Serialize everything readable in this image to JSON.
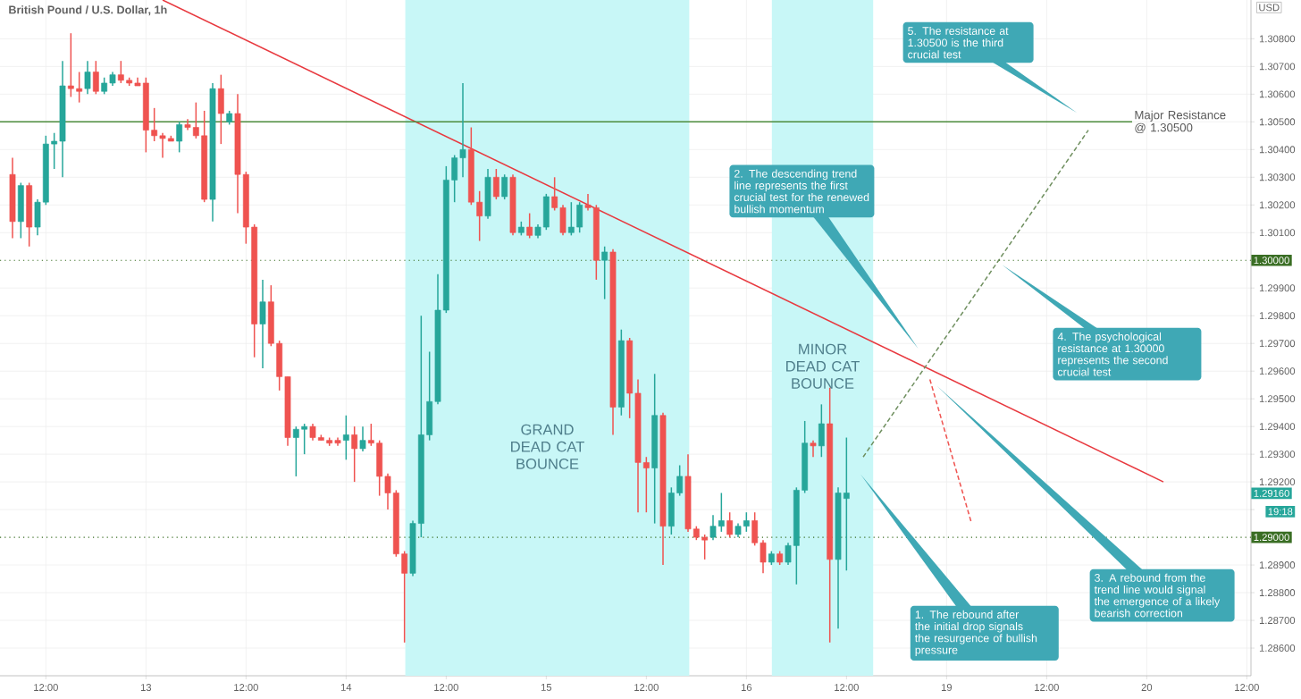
{
  "chart_data": {
    "type": "candlestick",
    "title": "British Pound / U.S. Dollar, 1h",
    "ylabel": "USD",
    "categories": [
      null,
      null,
      null,
      null,
      null,
      "12:00",
      null,
      null,
      null,
      null,
      null,
      null,
      null,
      null,
      null,
      null,
      null,
      "13",
      null,
      null,
      null,
      null,
      null,
      null,
      null,
      null,
      null,
      null,
      null,
      "12:00",
      null,
      null,
      null,
      null,
      null,
      null,
      null,
      null,
      null,
      null,
      null,
      "14",
      null,
      null,
      null,
      null,
      null,
      null,
      null,
      null,
      null,
      null,
      null,
      "12:00",
      null,
      null,
      null,
      null,
      null,
      null,
      null,
      null,
      null,
      null,
      null,
      "15",
      null,
      null,
      null,
      null,
      null,
      null,
      null,
      null,
      null,
      null,
      null,
      "12:00",
      null,
      null,
      null,
      null,
      null,
      null,
      null,
      null,
      null,
      null,
      null,
      "16",
      null,
      null,
      null,
      null,
      null,
      null,
      null,
      null,
      null,
      null,
      null,
      "12:00",
      null,
      null,
      null,
      null,
      null,
      null,
      null,
      null,
      null,
      null,
      null,
      "19",
      null,
      null,
      null,
      null,
      null,
      null,
      null,
      null,
      null,
      null,
      null,
      "12:00",
      null,
      null,
      null,
      null,
      null,
      null,
      null,
      null,
      null,
      null,
      null,
      "20",
      null,
      null,
      null,
      null,
      null,
      null,
      null,
      null,
      null,
      null,
      null,
      "12:00"
    ],
    "ylim": [
      1.285,
      1.3094
    ],
    "grid": true,
    "yticks": [
      {
        "value": 1.286,
        "label": "1.28600"
      },
      {
        "value": 1.287,
        "label": "1.28700"
      },
      {
        "value": 1.288,
        "label": "1.28800"
      },
      {
        "value": 1.289,
        "label": "1.28900"
      },
      {
        "value": 1.291,
        "label": null
      },
      {
        "value": 1.292,
        "label": "1.29200"
      },
      {
        "value": 1.293,
        "label": "1.29300"
      },
      {
        "value": 1.294,
        "label": "1.29400"
      },
      {
        "value": 1.295,
        "label": "1.29500"
      },
      {
        "value": 1.296,
        "label": "1.29600"
      },
      {
        "value": 1.297,
        "label": "1.29700"
      },
      {
        "value": 1.298,
        "label": "1.29800"
      },
      {
        "value": 1.299,
        "label": "1.29900"
      },
      {
        "value": 1.301,
        "label": "1.30100"
      },
      {
        "value": 1.302,
        "label": "1.30200"
      },
      {
        "value": 1.303,
        "label": "1.30300"
      },
      {
        "value": 1.304,
        "label": "1.30400"
      },
      {
        "value": 1.305,
        "label": "1.30500"
      },
      {
        "value": 1.306,
        "label": "1.30600"
      },
      {
        "value": 1.307,
        "label": "1.30700"
      },
      {
        "value": 1.308,
        "label": "1.30800"
      }
    ],
    "ref_lines": [
      {
        "axis": "y",
        "value": 1.305,
        "label": "Major Resistance @ 1.30500",
        "color": "#4c8c3c",
        "line_style": "solid"
      },
      {
        "axis": "y",
        "value": 1.3,
        "label": "1.30000",
        "color": "#3a6e24",
        "line_style": "dotted"
      },
      {
        "axis": "y",
        "value": 1.29,
        "label": "1.29000",
        "color": "#3a6e24",
        "line_style": "dotted"
      }
    ],
    "series": [
      {
        "ohlc": [
          null,
          [
            1.3031,
            1.3037,
            1.3008,
            1.3014
          ],
          [
            1.3014,
            1.3028,
            1.3008,
            1.3027
          ],
          [
            1.3027,
            1.3028,
            1.3005,
            1.3012
          ],
          [
            1.3012,
            1.3022,
            1.3009,
            1.3021
          ],
          [
            1.3021,
            1.3045,
            1.302,
            1.3042
          ],
          [
            1.3042,
            1.3046,
            1.3033,
            1.3043
          ],
          [
            1.3043,
            1.3072,
            1.303,
            1.3063
          ],
          [
            1.3063,
            1.3082,
            1.3059,
            1.3062
          ],
          [
            1.3062,
            1.3068,
            1.3057,
            1.3061
          ],
          [
            1.3062,
            1.3072,
            1.306,
            1.3068
          ],
          [
            1.3068,
            1.3072,
            1.306,
            1.3061
          ],
          [
            1.3061,
            1.3066,
            1.306,
            1.3064
          ],
          [
            1.3064,
            1.3068,
            1.3063,
            1.3067
          ],
          [
            1.3067,
            1.3072,
            1.3064,
            1.3065
          ],
          [
            1.3065,
            1.3066,
            1.3063,
            1.3064
          ],
          [
            1.3064,
            1.3066,
            1.3063,
            1.3063
          ],
          [
            1.3064,
            1.3066,
            1.3039,
            1.3047
          ],
          [
            1.3047,
            1.3055,
            1.3043,
            1.3045
          ],
          [
            1.3045,
            1.3046,
            1.3037,
            1.3044
          ],
          [
            1.3044,
            1.3045,
            1.3043,
            1.3043
          ],
          [
            1.3043,
            1.305,
            1.3039,
            1.3049
          ],
          [
            1.3049,
            1.3051,
            1.3047,
            1.3048
          ],
          [
            1.3048,
            1.3057,
            1.3044,
            1.3045
          ],
          [
            1.3045,
            1.3054,
            1.3021,
            1.3022
          ],
          [
            1.3022,
            1.3064,
            1.3014,
            1.3062
          ],
          [
            1.3062,
            1.3067,
            1.3042,
            1.3053
          ],
          [
            1.305,
            1.3054,
            1.3049,
            1.3053
          ],
          [
            1.3053,
            1.306,
            1.3017,
            1.3031
          ],
          [
            1.3031,
            1.3032,
            1.3006,
            1.3012
          ],
          [
            1.3012,
            1.3013,
            1.2965,
            1.2977
          ],
          [
            1.2977,
            1.2993,
            1.2961,
            1.2985
          ],
          [
            1.2985,
            1.2991,
            1.2969,
            1.297
          ],
          [
            1.297,
            1.2971,
            1.2953,
            1.2958
          ],
          [
            1.2958,
            1.2958,
            1.2933,
            1.2936
          ],
          [
            1.2936,
            1.294,
            1.2922,
            1.2939
          ],
          [
            1.2939,
            1.2941,
            1.293,
            1.294
          ],
          [
            1.294,
            1.2941,
            1.2935,
            1.2936
          ],
          [
            1.2936,
            1.2937,
            1.2935,
            1.2935
          ],
          [
            1.2935,
            1.2936,
            1.2933,
            1.2934
          ],
          [
            1.2935,
            1.2936,
            1.2933,
            1.2934
          ],
          [
            1.2935,
            1.2944,
            1.2928,
            1.2937
          ],
          [
            1.2937,
            1.294,
            1.292,
            1.2932
          ],
          [
            1.2932,
            1.294,
            1.2931,
            1.2935
          ],
          [
            1.2935,
            1.2941,
            1.2933,
            1.2934
          ],
          [
            1.2934,
            1.2935,
            1.2915,
            1.2922
          ],
          [
            1.2922,
            1.2923,
            1.291,
            1.2916
          ],
          [
            1.2916,
            1.2917,
            1.2893,
            1.2894
          ],
          [
            1.2894,
            1.2895,
            1.2862,
            1.2887
          ],
          [
            1.2887,
            1.2906,
            1.2886,
            1.2905
          ],
          [
            1.2905,
            1.298,
            1.29,
            1.2937
          ],
          [
            1.2937,
            1.2967,
            1.2935,
            1.2949
          ],
          [
            1.2949,
            1.2995,
            1.2948,
            1.2982
          ],
          [
            1.2982,
            1.3034,
            1.2981,
            1.3029
          ],
          [
            1.3029,
            1.3038,
            1.3021,
            1.3037
          ],
          [
            1.3037,
            1.3064,
            1.303,
            1.304
          ],
          [
            1.304,
            1.3048,
            1.302,
            1.3021
          ],
          [
            1.3021,
            1.3025,
            1.3007,
            1.3016
          ],
          [
            1.3016,
            1.3033,
            1.3015,
            1.303
          ],
          [
            1.303,
            1.3033,
            1.3022,
            1.3023
          ],
          [
            1.3023,
            1.3031,
            1.3022,
            1.303
          ],
          [
            1.303,
            1.3031,
            1.3009,
            1.301
          ],
          [
            1.301,
            1.3014,
            1.3009,
            1.3012
          ],
          [
            1.3012,
            1.3017,
            1.3008,
            1.3009
          ],
          [
            1.3009,
            1.3013,
            1.3008,
            1.3012
          ],
          [
            1.3012,
            1.3024,
            1.3011,
            1.3023
          ],
          [
            1.3023,
            1.303,
            1.3018,
            1.3019
          ],
          [
            1.3019,
            1.302,
            1.3009,
            1.301
          ],
          [
            1.301,
            1.3021,
            1.3009,
            1.3012
          ],
          [
            1.3012,
            1.3021,
            1.301,
            1.302
          ],
          [
            1.302,
            1.3024,
            1.3018,
            1.3019
          ],
          [
            1.3019,
            1.302,
            1.2993,
            1.3
          ],
          [
            1.3,
            1.3005,
            1.2986,
            1.3003
          ],
          [
            1.3003,
            1.3004,
            1.2937,
            1.2947
          ],
          [
            1.2947,
            1.2975,
            1.2944,
            1.2971
          ],
          [
            1.2971,
            1.2972,
            1.2943,
            1.2952
          ],
          [
            1.2952,
            1.2957,
            1.2909,
            1.2927
          ],
          [
            1.2927,
            1.2929,
            1.2909,
            1.2925
          ],
          [
            1.2925,
            1.2959,
            1.2905,
            1.2944
          ],
          [
            1.2944,
            1.2945,
            1.289,
            1.2904
          ],
          [
            1.2904,
            1.2918,
            1.2901,
            1.2916
          ],
          [
            1.2916,
            1.2926,
            1.2915,
            1.2922
          ],
          [
            1.2922,
            1.293,
            1.2902,
            1.2903
          ],
          [
            1.2903,
            1.2904,
            1.2899,
            1.29
          ],
          [
            1.29,
            1.2901,
            1.2892,
            1.2899
          ],
          [
            1.29,
            1.2908,
            1.2899,
            1.2904
          ],
          [
            1.2904,
            1.2916,
            1.2902,
            1.2906
          ],
          [
            1.2906,
            1.2909,
            1.29,
            1.2901
          ],
          [
            1.2901,
            1.2905,
            1.29,
            1.2904
          ],
          [
            1.2904,
            1.2909,
            1.2902,
            1.2906
          ],
          [
            1.2906,
            1.2909,
            1.2897,
            1.2898
          ],
          [
            1.2898,
            1.2899,
            1.2887,
            1.2891
          ],
          [
            1.2891,
            1.2895,
            1.289,
            1.2894
          ],
          [
            1.2894,
            1.2895,
            1.289,
            1.2891
          ],
          [
            1.2891,
            1.2898,
            1.289,
            1.2897
          ],
          [
            1.2897,
            1.2918,
            1.2883,
            1.2917
          ],
          [
            1.2917,
            1.2942,
            1.2916,
            1.2934
          ],
          [
            1.2934,
            1.2935,
            1.2929,
            1.2933
          ],
          [
            1.2933,
            1.2948,
            1.2929,
            1.2941
          ],
          [
            1.2941,
            1.2954,
            1.2862,
            1.2892
          ],
          [
            1.2892,
            1.2918,
            1.2867,
            1.2916
          ],
          [
            1.2914,
            1.2936,
            1.2888,
            1.2916
          ],
          null,
          null,
          null,
          null,
          null,
          null,
          null,
          null,
          null,
          null,
          null,
          null,
          null,
          null,
          null,
          null,
          null,
          null,
          null,
          null,
          null,
          null,
          null,
          null,
          null,
          null,
          null,
          null,
          null,
          null,
          null,
          null,
          null,
          null,
          null,
          null,
          null,
          null,
          null,
          null,
          null,
          null,
          null,
          null,
          null,
          null,
          null,
          null
        ],
        "colors": [
          null,
          "#ef5350",
          "#26a69a",
          "#ef5350",
          "#26a69a",
          "#26a69a",
          "#26a69a",
          "#26a69a",
          "#ef5350",
          "#ef5350",
          "#26a69a",
          "#ef5350",
          "#26a69a",
          "#26a69a",
          "#ef5350",
          "#ef5350",
          "#ef5350",
          "#ef5350",
          "#ef5350",
          "#ef5350",
          "#ef5350",
          "#26a69a",
          "#ef5350",
          "#ef5350",
          "#ef5350",
          "#26a69a",
          "#ef5350",
          "#26a69a",
          "#ef5350",
          "#ef5350",
          "#ef5350",
          "#26a69a",
          "#ef5350",
          "#ef5350",
          "#ef5350",
          "#26a69a",
          "#26a69a",
          "#ef5350",
          "#ef5350",
          "#ef5350",
          "#ef5350",
          "#26a69a",
          "#ef5350",
          "#26a69a",
          "#ef5350",
          "#ef5350",
          "#ef5350",
          "#ef5350",
          "#ef5350",
          "#26a69a",
          "#26a69a",
          "#26a69a",
          "#26a69a",
          "#26a69a",
          "#26a69a",
          "#26a69a",
          "#ef5350",
          "#ef5350",
          "#26a69a",
          "#ef5350",
          "#26a69a",
          "#ef5350",
          "#26a69a",
          "#ef5350",
          "#26a69a",
          "#26a69a",
          "#ef5350",
          "#ef5350",
          "#26a69a",
          "#26a69a",
          "#ef5350",
          "#ef5350",
          "#26a69a",
          "#ef5350",
          "#26a69a",
          "#ef5350",
          "#ef5350",
          "#ef5350",
          "#26a69a",
          "#ef5350",
          "#26a69a",
          "#26a69a",
          "#ef5350",
          "#ef5350",
          "#ef5350",
          "#26a69a",
          "#26a69a",
          "#ef5350",
          "#26a69a",
          "#26a69a",
          "#ef5350",
          "#ef5350",
          "#26a69a",
          "#ef5350",
          "#26a69a",
          "#26a69a",
          "#26a69a",
          "#ef5350",
          "#26a69a",
          "#ef5350",
          "#26a69a",
          "#26a69a",
          null,
          null,
          null,
          null,
          null,
          null,
          null,
          null,
          null,
          null,
          null,
          null,
          null,
          null,
          null,
          null,
          null,
          null,
          null,
          null,
          null,
          null,
          null,
          null,
          null,
          null,
          null,
          null,
          null,
          null,
          null,
          null,
          null,
          null,
          null,
          null,
          null,
          null,
          null,
          null,
          null,
          null,
          null,
          null,
          null,
          null,
          null,
          null
        ]
      },
      {
        "type": "line",
        "color": "#e8393f",
        "line_style": "solid",
        "values": [
          null,
          null,
          null,
          null,
          null,
          null,
          null,
          null,
          null,
          null,
          null,
          null,
          null,
          null,
          null,
          null,
          null,
          null,
          null,
          1.3094,
          null,
          null,
          null,
          null,
          null,
          null,
          null,
          null,
          null,
          null,
          null,
          null,
          null,
          null,
          null,
          null,
          null,
          null,
          null,
          null,
          null,
          null,
          null,
          null,
          null,
          null,
          null,
          null,
          null,
          null,
          null,
          null,
          null,
          null,
          null,
          null,
          null,
          null,
          null,
          null,
          null,
          null,
          null,
          null,
          null,
          null,
          null,
          null,
          null,
          null,
          null,
          null,
          null,
          null,
          null,
          null,
          null,
          null,
          null,
          null,
          null,
          null,
          null,
          null,
          null,
          null,
          null,
          null,
          null,
          null,
          null,
          null,
          null,
          null,
          null,
          null,
          null,
          null,
          null,
          null,
          null,
          null,
          null,
          null,
          null,
          null,
          null,
          null,
          null,
          null,
          null,
          null,
          null,
          null,
          null,
          null,
          null,
          null,
          null,
          null,
          null,
          null,
          null,
          null,
          null,
          null,
          null,
          null,
          null,
          null,
          null,
          null,
          null,
          null,
          null,
          null,
          null,
          null,
          null,
          1.292,
          null,
          null,
          null,
          null,
          null,
          null,
          null,
          null,
          null,
          null
        ]
      },
      {
        "type": "line",
        "color": "#6f8f5f",
        "line_style": "dashed",
        "values": [
          null,
          null,
          null,
          null,
          null,
          null,
          null,
          null,
          null,
          null,
          null,
          null,
          null,
          null,
          null,
          null,
          null,
          null,
          null,
          null,
          null,
          null,
          null,
          null,
          null,
          null,
          null,
          null,
          null,
          null,
          null,
          null,
          null,
          null,
          null,
          null,
          null,
          null,
          null,
          null,
          null,
          null,
          null,
          null,
          null,
          null,
          null,
          null,
          null,
          null,
          null,
          null,
          null,
          null,
          null,
          null,
          null,
          null,
          null,
          null,
          null,
          null,
          null,
          null,
          null,
          null,
          null,
          null,
          null,
          null,
          null,
          null,
          null,
          null,
          null,
          null,
          null,
          null,
          null,
          null,
          null,
          null,
          null,
          null,
          null,
          null,
          null,
          null,
          null,
          null,
          null,
          null,
          null,
          null,
          null,
          null,
          null,
          null,
          null,
          null,
          null,
          null,
          null,
          1.2929,
          null,
          null,
          null,
          null,
          null,
          null,
          null,
          null,
          null,
          null,
          null,
          null,
          null,
          null,
          null,
          null,
          null,
          null,
          null,
          null,
          null,
          null,
          null,
          null,
          null,
          null,
          1.3047,
          null,
          null,
          null,
          null,
          null,
          null,
          null,
          null,
          null,
          null,
          null,
          null,
          null,
          null,
          null,
          null,
          null,
          null,
          null
        ]
      },
      {
        "type": "line",
        "color": "#ef5350",
        "line_style": "dashed",
        "values": [
          null,
          null,
          null,
          null,
          null,
          null,
          null,
          null,
          null,
          null,
          null,
          null,
          null,
          null,
          null,
          null,
          null,
          null,
          null,
          null,
          null,
          null,
          null,
          null,
          null,
          null,
          null,
          null,
          null,
          null,
          null,
          null,
          null,
          null,
          null,
          null,
          null,
          null,
          null,
          null,
          null,
          null,
          null,
          null,
          null,
          null,
          null,
          null,
          null,
          null,
          null,
          null,
          null,
          null,
          null,
          null,
          null,
          null,
          null,
          null,
          null,
          null,
          null,
          null,
          null,
          null,
          null,
          null,
          null,
          null,
          null,
          null,
          null,
          null,
          null,
          null,
          null,
          null,
          null,
          null,
          null,
          null,
          null,
          null,
          null,
          null,
          null,
          null,
          null,
          null,
          null,
          null,
          null,
          null,
          null,
          null,
          null,
          null,
          null,
          null,
          null,
          null,
          null,
          null,
          null,
          null,
          null,
          null,
          null,
          null,
          null,
          1.2957,
          null,
          null,
          null,
          null,
          1.2905,
          null,
          null,
          null,
          null,
          null,
          null,
          null,
          null,
          null,
          null,
          null,
          null,
          null,
          null,
          null,
          null,
          null,
          null,
          null,
          null,
          null,
          null,
          null,
          null,
          null,
          null,
          null,
          null,
          null,
          null,
          null,
          null,
          null
        ]
      }
    ],
    "annotations": [
      "1. The rebound after the initial drop signals the resurgence of bullish pressure",
      "2. The descending trend line represents the first crucial test for the renewed bullish momentum",
      "3. A rebound from the trend line would signal the emergence of a likely bearish correction",
      "4. The psychological resistance at 1.30000 represents the second crucial test",
      "5. The resistance at 1.30500 is the third crucial test",
      "GRAND DEAD CAT BOUNCE",
      "MINOR DEAD CAT BOUNCE",
      "1.29160",
      "19:18"
    ]
  }
}
